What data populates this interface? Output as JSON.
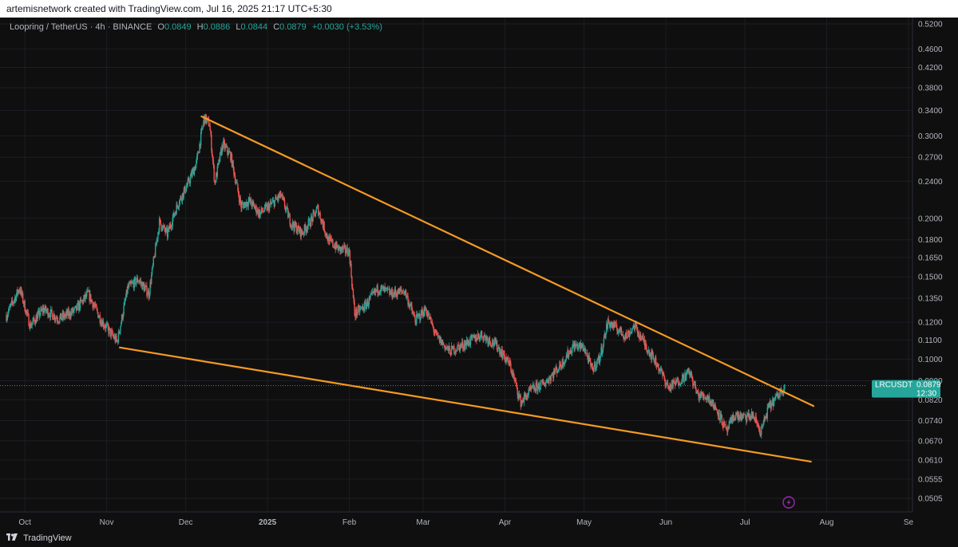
{
  "header": {
    "attribution": "artemisnetwork created with TradingView.com, Jul 16, 2025 21:17 UTC+5:30"
  },
  "legend": {
    "symbol": "Loopring / TetherUS · 4h · BINANCE",
    "open_label": "O",
    "open": "0.0849",
    "high_label": "H",
    "high": "0.0886",
    "low_label": "L",
    "low": "0.0844",
    "close_label": "C",
    "close": "0.0879",
    "change": "+0.0030 (+3.53%)"
  },
  "price_tag": {
    "ticker": "LRCUSDT",
    "price": "0.0879",
    "countdown": "12:30"
  },
  "footer": {
    "brand": "TradingView"
  },
  "colors": {
    "up": "#26a69a",
    "down": "#ef5350",
    "trendline": "#f59a23",
    "tag": "#26a69a"
  },
  "icons": [
    "tradingview-logo-icon",
    "lightning-icon"
  ],
  "chart_data": {
    "type": "candlestick",
    "y_scale": "log",
    "y_ticks": [
      "0.5200",
      "0.4600",
      "0.4200",
      "0.3800",
      "0.3400",
      "0.3000",
      "0.2700",
      "0.2400",
      "0.2000",
      "0.1800",
      "0.1650",
      "0.1500",
      "0.1350",
      "0.1200",
      "0.1100",
      "0.1000",
      "0.0900",
      "0.0820",
      "0.0740",
      "0.0670",
      "0.0610",
      "0.0555",
      "0.0505"
    ],
    "y_tick_values": [
      0.52,
      0.46,
      0.42,
      0.38,
      0.34,
      0.3,
      0.27,
      0.24,
      0.2,
      0.18,
      0.165,
      0.15,
      0.135,
      0.12,
      0.11,
      0.1,
      0.09,
      0.082,
      0.074,
      0.067,
      0.061,
      0.0555,
      0.0505
    ],
    "x_ticks": [
      "Oct",
      "Nov",
      "Dec",
      "2025",
      "Feb",
      "Mar",
      "Apr",
      "May",
      "Jun",
      "Jul",
      "Aug",
      "Se"
    ],
    "x_tick_dates": [
      "2024-10-01",
      "2024-11-01",
      "2024-12-01",
      "2025-01-01",
      "2025-02-01",
      "2025-03-01",
      "2025-04-01",
      "2025-05-01",
      "2025-06-01",
      "2025-07-01",
      "2025-08-01",
      "2025-09-01"
    ],
    "x_start": "2024-09-24",
    "x_end": "2025-09-01",
    "price_path": [
      [
        "2024-09-24",
        0.124
      ],
      [
        "2024-09-29",
        0.142
      ],
      [
        "2024-10-03",
        0.118
      ],
      [
        "2024-10-08",
        0.128
      ],
      [
        "2024-10-14",
        0.122
      ],
      [
        "2024-10-20",
        0.127
      ],
      [
        "2024-10-25",
        0.138
      ],
      [
        "2024-10-30",
        0.121
      ],
      [
        "2024-11-05",
        0.109
      ],
      [
        "2024-11-09",
        0.142
      ],
      [
        "2024-11-13",
        0.148
      ],
      [
        "2024-11-17",
        0.138
      ],
      [
        "2024-11-21",
        0.196
      ],
      [
        "2024-11-24",
        0.185
      ],
      [
        "2024-11-28",
        0.215
      ],
      [
        "2024-12-02",
        0.238
      ],
      [
        "2024-12-05",
        0.262
      ],
      [
        "2024-12-08",
        0.328
      ],
      [
        "2024-12-10",
        0.318
      ],
      [
        "2024-12-12",
        0.238
      ],
      [
        "2024-12-15",
        0.288
      ],
      [
        "2024-12-18",
        0.272
      ],
      [
        "2024-12-22",
        0.212
      ],
      [
        "2024-12-25",
        0.218
      ],
      [
        "2024-12-29",
        0.205
      ],
      [
        "2025-01-02",
        0.213
      ],
      [
        "2025-01-06",
        0.224
      ],
      [
        "2025-01-10",
        0.195
      ],
      [
        "2025-01-14",
        0.186
      ],
      [
        "2025-01-18",
        0.2
      ],
      [
        "2025-01-20",
        0.21
      ],
      [
        "2025-01-24",
        0.18
      ],
      [
        "2025-01-28",
        0.172
      ],
      [
        "2025-02-01",
        0.17
      ],
      [
        "2025-02-03",
        0.125
      ],
      [
        "2025-02-07",
        0.13
      ],
      [
        "2025-02-12",
        0.142
      ],
      [
        "2025-02-17",
        0.138
      ],
      [
        "2025-02-22",
        0.14
      ],
      [
        "2025-02-26",
        0.121
      ],
      [
        "2025-03-02",
        0.128
      ],
      [
        "2025-03-06",
        0.112
      ],
      [
        "2025-03-11",
        0.104
      ],
      [
        "2025-03-17",
        0.108
      ],
      [
        "2025-03-23",
        0.113
      ],
      [
        "2025-03-29",
        0.107
      ],
      [
        "2025-04-03",
        0.097
      ],
      [
        "2025-04-07",
        0.081
      ],
      [
        "2025-04-11",
        0.086
      ],
      [
        "2025-04-16",
        0.089
      ],
      [
        "2025-04-22",
        0.097
      ],
      [
        "2025-04-27",
        0.107
      ],
      [
        "2025-05-01",
        0.106
      ],
      [
        "2025-05-04",
        0.095
      ],
      [
        "2025-05-07",
        0.101
      ],
      [
        "2025-05-10",
        0.12
      ],
      [
        "2025-05-13",
        0.117
      ],
      [
        "2025-05-17",
        0.112
      ],
      [
        "2025-05-20",
        0.118
      ],
      [
        "2025-05-24",
        0.108
      ],
      [
        "2025-05-29",
        0.097
      ],
      [
        "2025-06-02",
        0.087
      ],
      [
        "2025-06-06",
        0.09
      ],
      [
        "2025-06-10",
        0.094
      ],
      [
        "2025-06-13",
        0.084
      ],
      [
        "2025-06-17",
        0.083
      ],
      [
        "2025-06-21",
        0.077
      ],
      [
        "2025-06-24",
        0.07
      ],
      [
        "2025-06-27",
        0.076
      ],
      [
        "2025-07-01",
        0.075
      ],
      [
        "2025-07-04",
        0.076
      ],
      [
        "2025-07-07",
        0.07
      ],
      [
        "2025-07-10",
        0.079
      ],
      [
        "2025-07-13",
        0.083
      ],
      [
        "2025-07-16",
        0.0879
      ]
    ],
    "trendlines": [
      {
        "name": "upper",
        "start": [
          "2024-12-07",
          0.33
        ],
        "end": [
          "2025-07-27",
          0.0795
        ]
      },
      {
        "name": "lower",
        "start": [
          "2024-11-06",
          0.106
        ],
        "end": [
          "2025-07-26",
          0.0605
        ]
      }
    ],
    "last_price": 0.0879
  }
}
